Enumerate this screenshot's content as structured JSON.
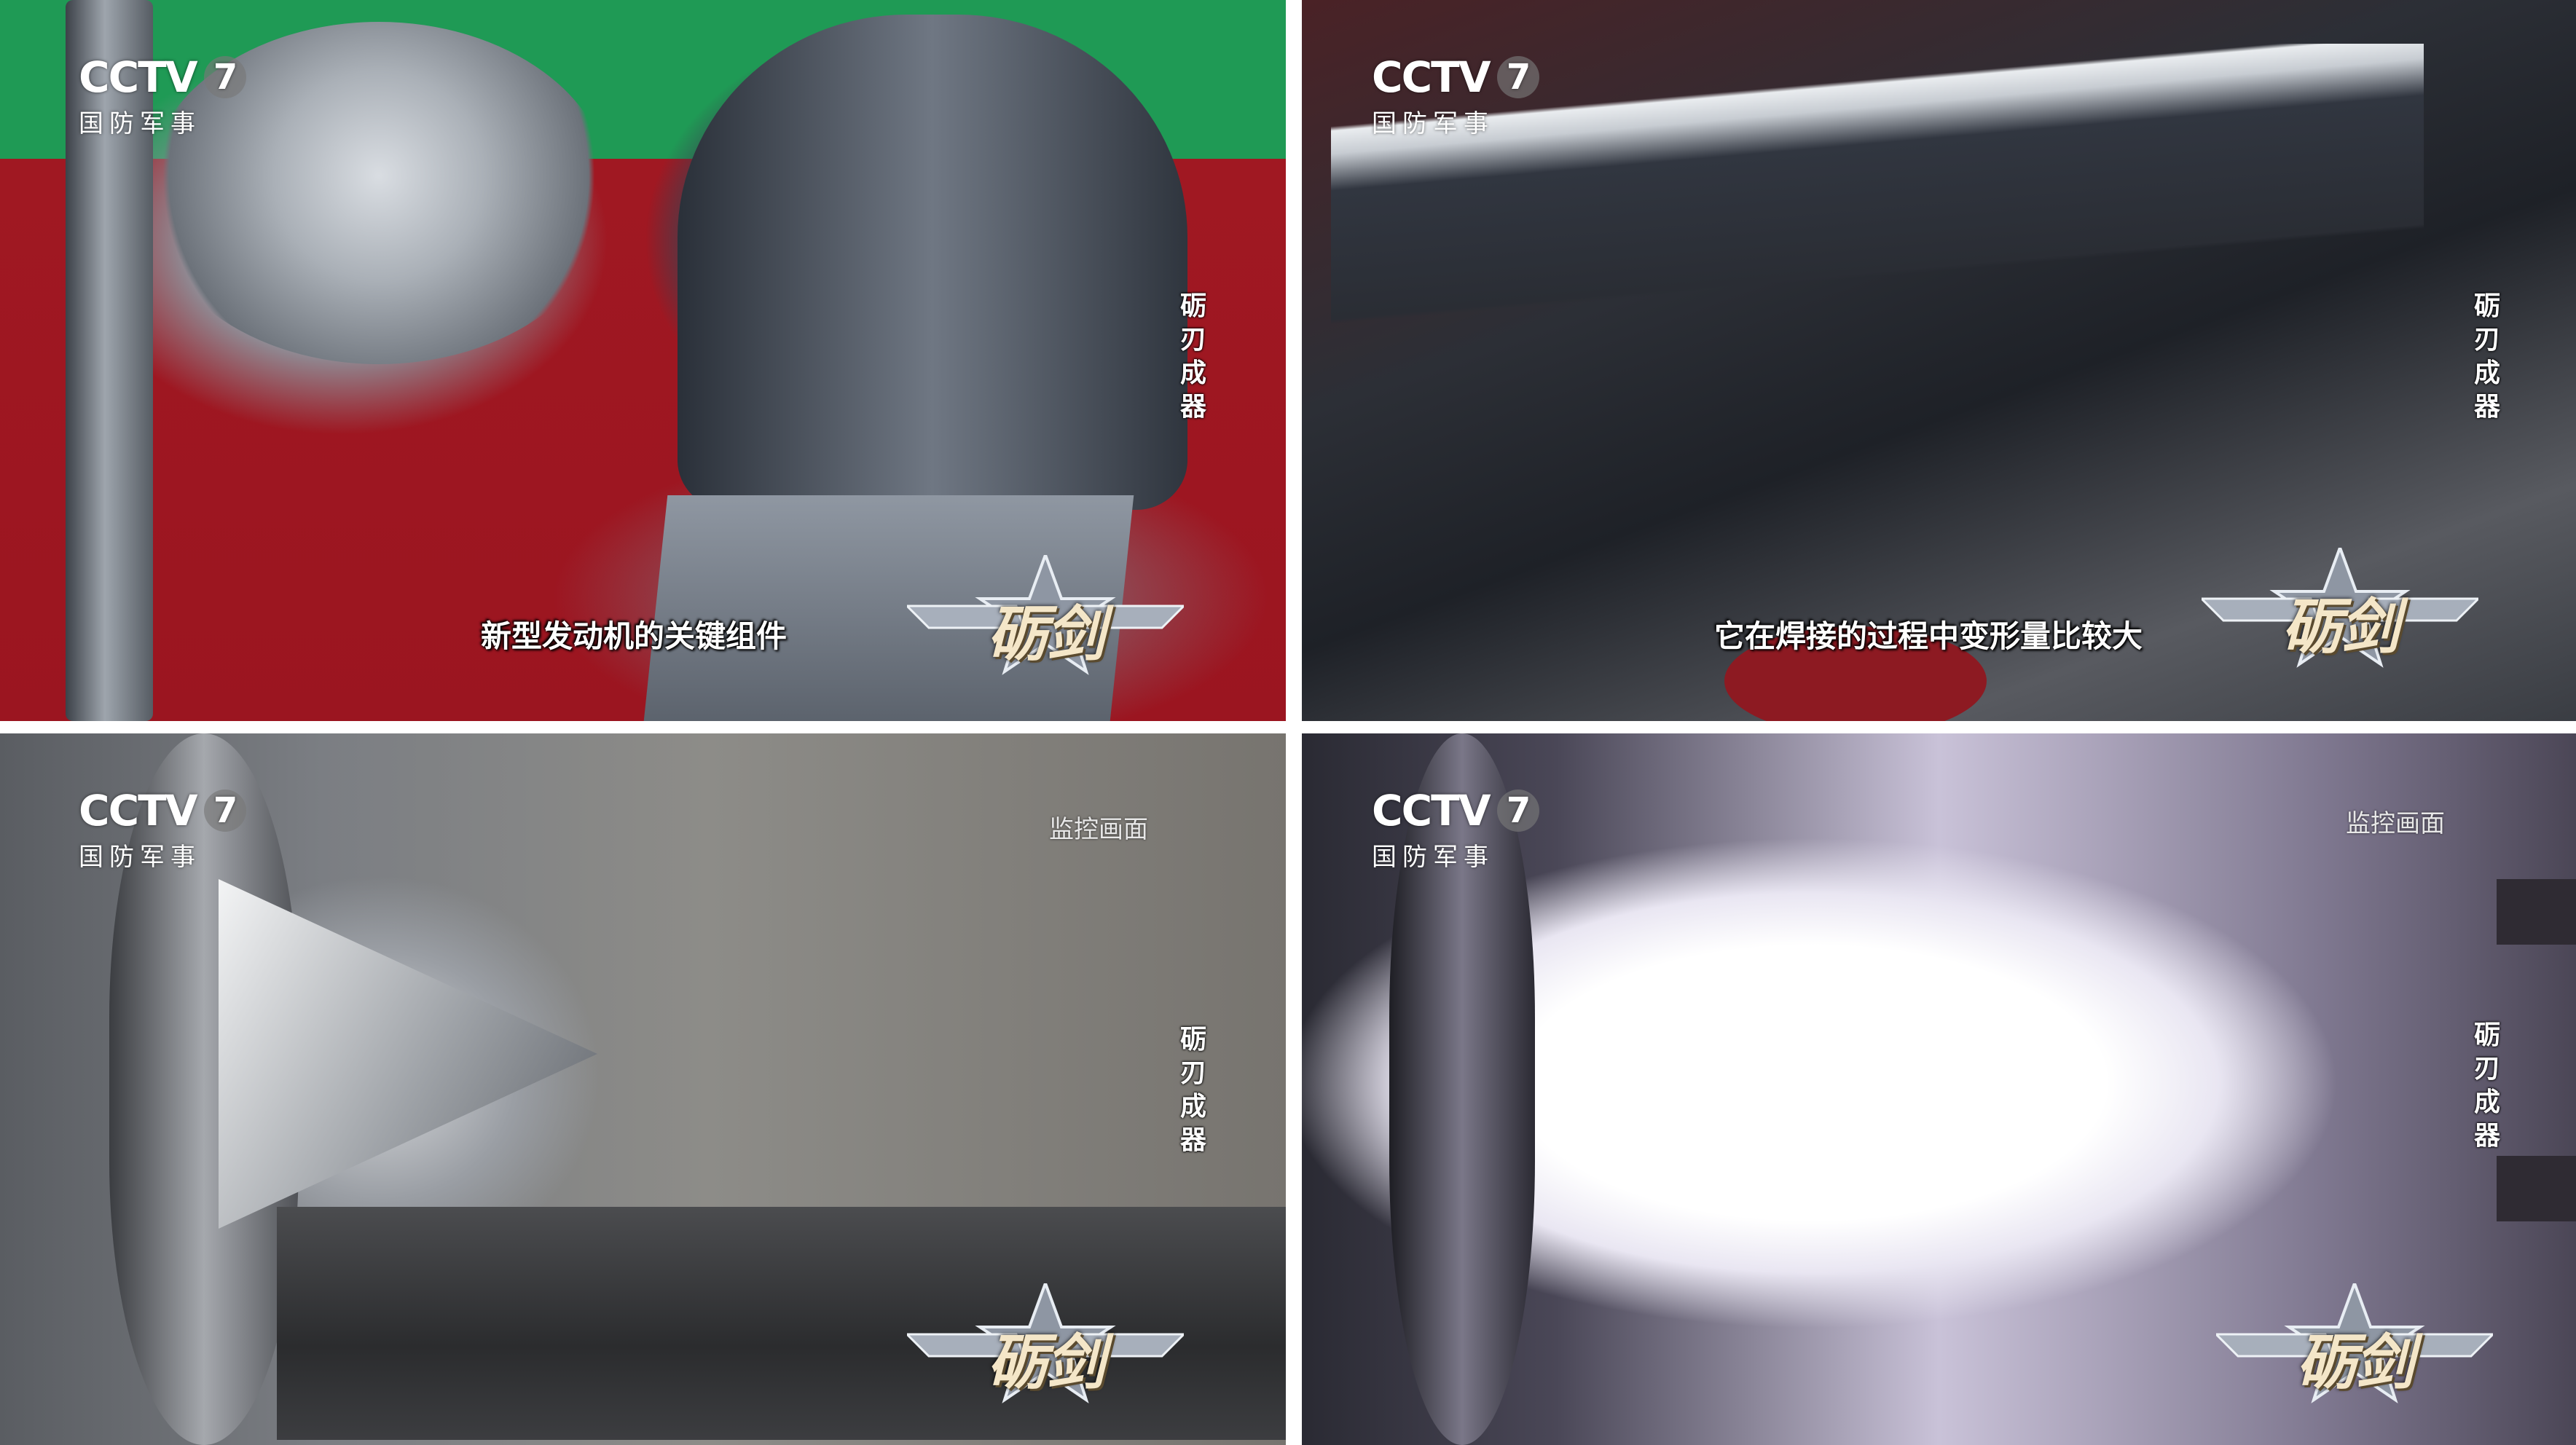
{
  "panels": [
    {
      "logo": {
        "brand": "CCTV",
        "channel": "7",
        "subtitle": "国防军事"
      },
      "side_tag": [
        "砺",
        "刃",
        "成",
        "器"
      ],
      "caption": "新型发动机的关键组件",
      "emblem": "砺剑"
    },
    {
      "logo": {
        "brand": "CCTV",
        "channel": "7",
        "subtitle": "国防军事"
      },
      "side_tag": [
        "砺",
        "刃",
        "成",
        "器"
      ],
      "caption": "它在焊接的过程中变形量比较大",
      "emblem": "砺剑"
    },
    {
      "logo": {
        "brand": "CCTV",
        "channel": "7",
        "subtitle": "国防军事"
      },
      "side_tag": [
        "砺",
        "刃",
        "成",
        "器"
      ],
      "label": "监控画面",
      "emblem": "砺剑"
    },
    {
      "logo": {
        "brand": "CCTV",
        "channel": "7",
        "subtitle": "国防军事"
      },
      "side_tag": [
        "砺",
        "刃",
        "成",
        "器"
      ],
      "label": "监控画面",
      "emblem": "砺剑"
    }
  ]
}
